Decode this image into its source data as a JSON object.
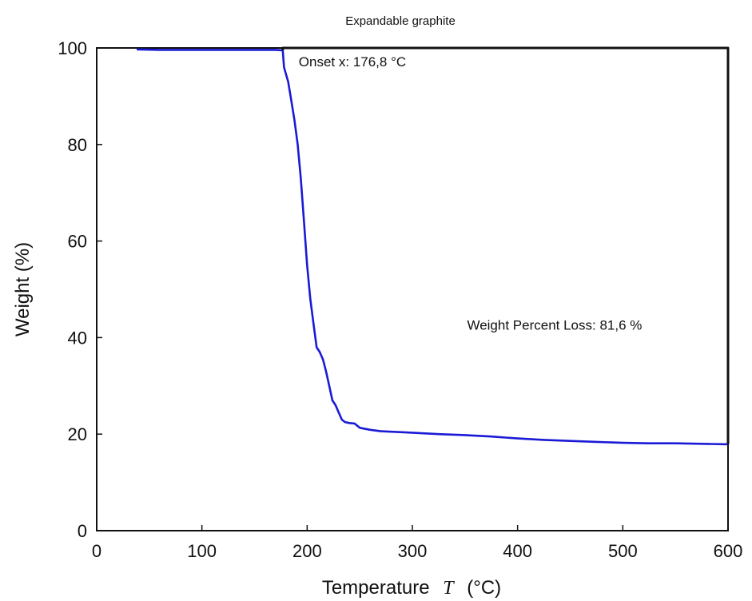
{
  "chart_data": {
    "type": "line",
    "title": "Expandable graphite",
    "xlabel_main": "Temperature",
    "xlabel_symbol": "T",
    "xlabel_unit": "(°C)",
    "ylabel": "Weight  (%)",
    "xlim": [
      0,
      600
    ],
    "ylim": [
      0,
      100
    ],
    "x_ticks": [
      0,
      100,
      200,
      300,
      400,
      500,
      600
    ],
    "y_ticks": [
      0,
      20,
      40,
      60,
      80,
      100
    ],
    "grid": false,
    "annotations": [
      {
        "text": "Onset x: 176,8 °C",
        "x": 192,
        "y": 96.2
      },
      {
        "text": "Weight Percent Loss: 81,6 %",
        "x": 352,
        "y": 41.6
      }
    ],
    "series": [
      {
        "color": "#1a1ad6",
        "x": [
          38,
          60,
          100,
          140,
          170,
          176.8,
          178,
          182,
          185,
          188,
          191,
          194,
          197,
          200,
          203,
          206,
          209,
          212,
          215,
          218,
          221,
          224,
          227,
          230,
          233,
          236,
          240,
          245,
          250,
          260,
          270,
          280,
          300,
          325,
          350,
          375,
          400,
          425,
          450,
          475,
          500,
          525,
          550,
          575,
          600
        ],
        "y": [
          99.7,
          99.6,
          99.6,
          99.6,
          99.6,
          99.5,
          96.0,
          93.0,
          89.0,
          85.0,
          80.0,
          73.0,
          64.0,
          55.0,
          48.0,
          43.0,
          38.0,
          37.0,
          35.5,
          33.0,
          30.0,
          27.0,
          26.0,
          24.5,
          23.0,
          22.5,
          22.3,
          22.2,
          21.3,
          20.9,
          20.6,
          20.5,
          20.3,
          20.0,
          19.8,
          19.5,
          19.1,
          18.8,
          18.6,
          18.4,
          18.2,
          18.1,
          18.1,
          18.0,
          17.9
        ]
      },
      {
        "color": "#111111",
        "x": [
          176.8,
          176.8,
          600,
          600
        ],
        "y": [
          99.5,
          100,
          100,
          17.9
        ]
      }
    ]
  }
}
